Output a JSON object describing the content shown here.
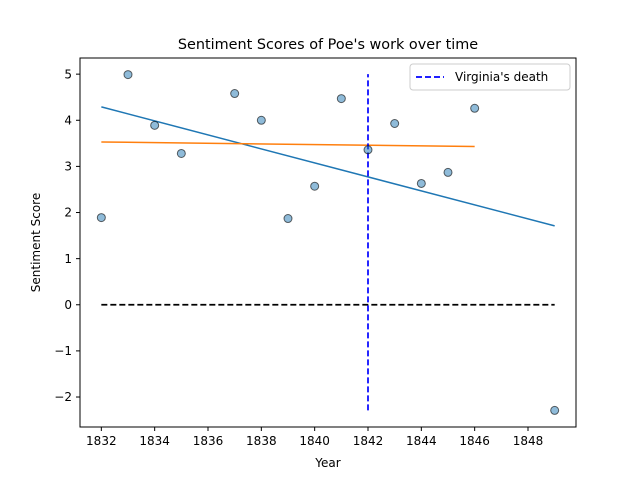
{
  "chart_data": {
    "type": "scatter",
    "title": "Sentiment Scores of Poe's work over time",
    "xlabel": "Year",
    "ylabel": "Sentiment Score",
    "xlim": [
      1831.2,
      1849.8
    ],
    "ylim": [
      -2.65,
      5.35
    ],
    "x_ticks": [
      1832,
      1834,
      1836,
      1838,
      1840,
      1842,
      1844,
      1846,
      1848
    ],
    "x_tick_labels": [
      "1832",
      "1834",
      "1836",
      "1838",
      "1840",
      "1842",
      "1844",
      "1846",
      "1848"
    ],
    "y_ticks": [
      -2,
      -1,
      0,
      1,
      2,
      3,
      4,
      5
    ],
    "y_tick_labels": [
      "−2",
      "−1",
      "0",
      "1",
      "2",
      "3",
      "4",
      "5"
    ],
    "grid": false,
    "legend": {
      "placement": "top-right",
      "entries": [
        "Virginia's death"
      ]
    },
    "points": [
      {
        "x": 1832,
        "y": 1.89
      },
      {
        "x": 1833,
        "y": 4.99
      },
      {
        "x": 1834,
        "y": 3.89
      },
      {
        "x": 1835,
        "y": 3.28
      },
      {
        "x": 1837,
        "y": 4.58
      },
      {
        "x": 1838,
        "y": 4.0
      },
      {
        "x": 1839,
        "y": 1.87
      },
      {
        "x": 1840,
        "y": 2.57
      },
      {
        "x": 1841,
        "y": 4.47
      },
      {
        "x": 1842,
        "y": 3.36
      },
      {
        "x": 1843,
        "y": 3.93
      },
      {
        "x": 1844,
        "y": 2.63
      },
      {
        "x": 1845,
        "y": 2.87
      },
      {
        "x": 1846,
        "y": 4.26
      },
      {
        "x": 1849,
        "y": -2.29
      }
    ],
    "point_color": "#1f77b4",
    "lines": [
      {
        "role": "trend-all",
        "x": [
          1832,
          1849
        ],
        "y": [
          4.29,
          1.71
        ],
        "color": "#1f77b4",
        "style": "solid"
      },
      {
        "role": "trend-subset",
        "x": [
          1832,
          1846
        ],
        "y": [
          3.53,
          3.43
        ],
        "color": "#ff7f0e",
        "style": "solid"
      },
      {
        "role": "zero-line",
        "x": [
          1832,
          1849
        ],
        "y": [
          0,
          0
        ],
        "color": "#000000",
        "style": "dashed"
      },
      {
        "role": "virginia-death",
        "name": "Virginia's death",
        "x": [
          1842,
          1842
        ],
        "y": [
          -2.29,
          5.0
        ],
        "color": "#0000ff",
        "style": "dashed"
      }
    ]
  }
}
